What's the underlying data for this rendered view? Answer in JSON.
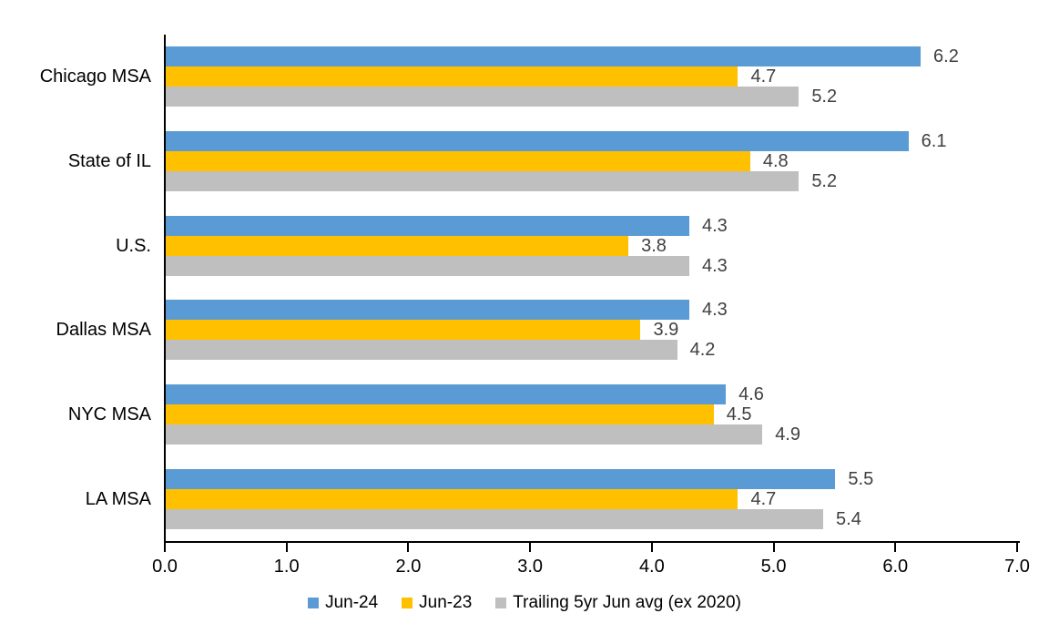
{
  "chart_data": {
    "type": "bar",
    "orientation": "horizontal",
    "title": "",
    "categories": [
      "Chicago MSA",
      "State of IL",
      "U.S.",
      "Dallas MSA",
      "NYC MSA",
      "LA MSA"
    ],
    "series": [
      {
        "name": "Jun-24",
        "color": "#5B9BD5",
        "values": [
          6.2,
          6.1,
          4.3,
          4.3,
          4.6,
          5.5
        ]
      },
      {
        "name": "Jun-23",
        "color": "#FFC000",
        "values": [
          4.7,
          4.8,
          3.8,
          3.9,
          4.5,
          4.7
        ]
      },
      {
        "name": "Trailing 5yr Jun avg (ex 2020)",
        "color": "#BFBFBF",
        "values": [
          5.2,
          5.2,
          4.3,
          4.2,
          4.9,
          5.4
        ]
      }
    ],
    "x_ticks": [
      "0.0",
      "1.0",
      "2.0",
      "3.0",
      "4.0",
      "5.0",
      "6.0",
      "7.0"
    ],
    "xlim": [
      0,
      7
    ],
    "value_labels_shown": true,
    "value_label_color": "#404040",
    "axis_color": "#000000",
    "grid": false,
    "legend_position": "bottom"
  }
}
